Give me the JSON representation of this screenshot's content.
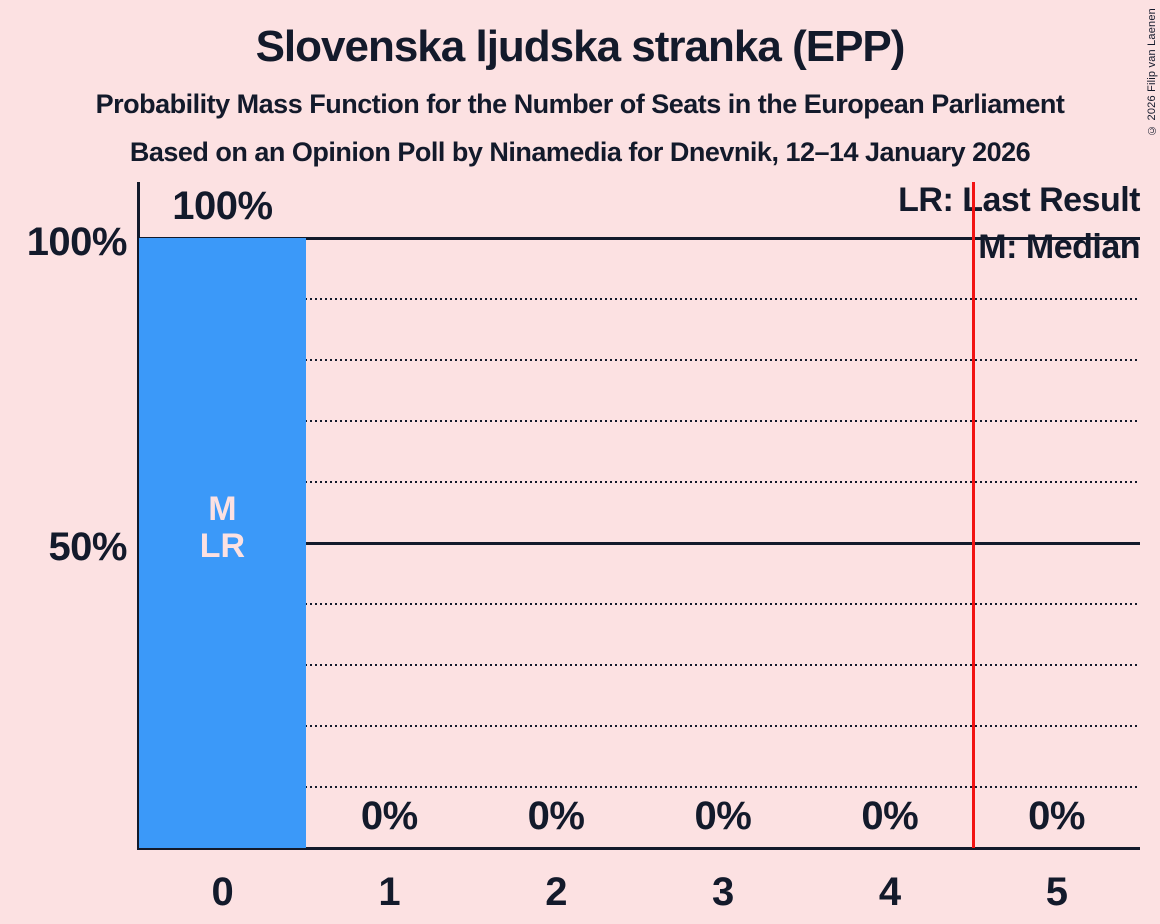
{
  "header": {
    "title": "Slovenska ljudska stranka (EPP)",
    "subtitle": "Probability Mass Function for the Number of Seats in the European Parliament",
    "source_line": "Based on an Opinion Poll by Ninamedia for Dnevnik, 12–14 January 2026"
  },
  "legend": {
    "lr_label": "LR: Last Result",
    "m_label": "M: Median"
  },
  "copyright": "© 2026 Filip van Laenen",
  "colors": {
    "background": "#FCE1E2",
    "ink": "#131A2B",
    "bar": "#3B99F9",
    "bar_marker_text": "#FCE1E2",
    "red_line": "#F21313"
  },
  "chart_data": {
    "type": "bar",
    "title": "Slovenska ljudska stranka (EPP)",
    "subtitle": "Probability Mass Function for the Number of Seats in the European Parliament",
    "source": "Based on an Opinion Poll by Ninamedia for Dnevnik, 12–14 January 2026",
    "categories": [
      "0",
      "1",
      "2",
      "3",
      "4",
      "5"
    ],
    "values": [
      100,
      0,
      0,
      0,
      0,
      0
    ],
    "value_labels": [
      "100%",
      "0%",
      "0%",
      "0%",
      "0%",
      "0%"
    ],
    "ylim": [
      0,
      100
    ],
    "yticks": [
      {
        "label": "100%",
        "value": 100
      },
      {
        "label": "50%",
        "value": 50
      }
    ],
    "grid": {
      "dotted_step": 10,
      "solid_at": [
        50,
        100
      ]
    },
    "markers": {
      "category_index": 0,
      "labels": [
        "M",
        "LR"
      ]
    },
    "red_line_x": 4.5,
    "legend_entries": [
      "LR: Last Result",
      "M: Median"
    ],
    "legend_position": "top-right"
  }
}
